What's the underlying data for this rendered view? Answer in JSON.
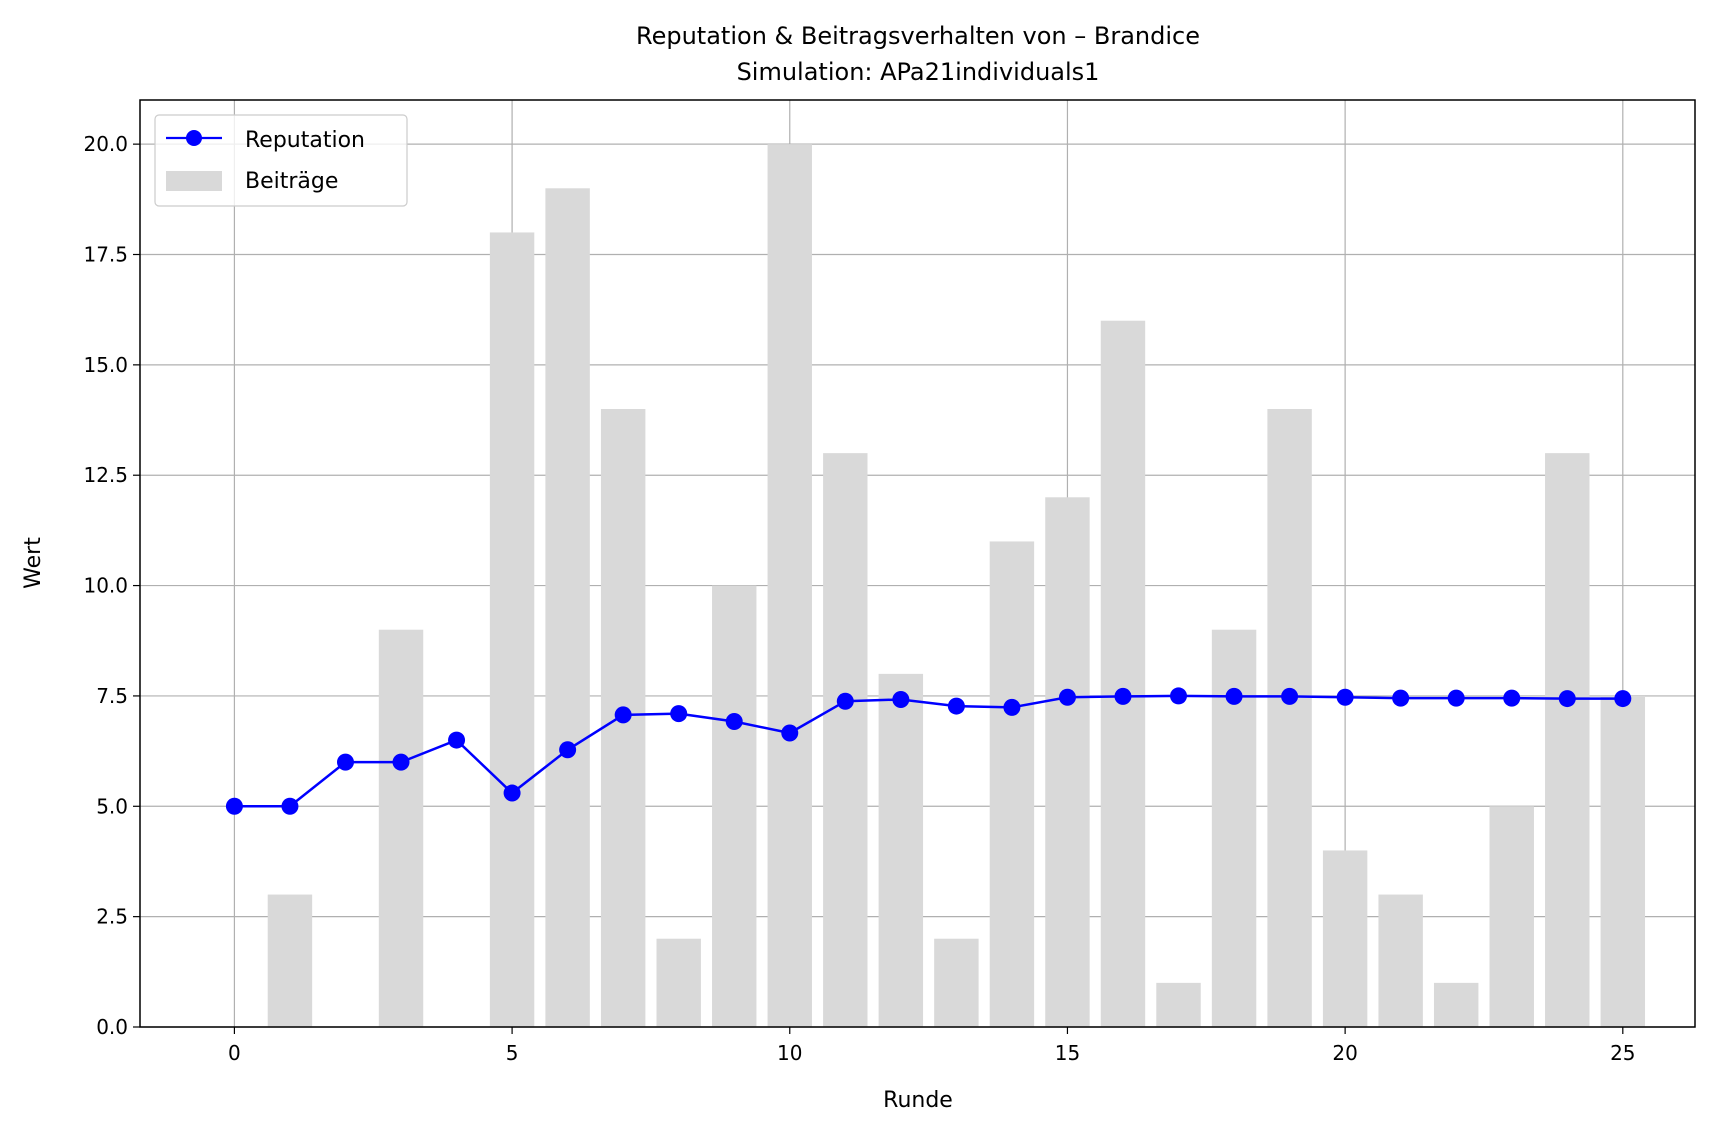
{
  "chart_data": {
    "type": "bar+line",
    "title": "Reputation & Beitragsverhalten von – Brandice",
    "subtitle": "Simulation: APa21individuals1",
    "xlabel": "Runde",
    "ylabel": "Wert",
    "xlim": [
      -1.7,
      26.3
    ],
    "ylim": [
      0,
      21
    ],
    "x_ticks": [
      0,
      5,
      10,
      15,
      20,
      25
    ],
    "x_tick_labels": [
      "0",
      "5",
      "10",
      "15",
      "20",
      "25"
    ],
    "y_ticks": [
      0,
      2.5,
      5,
      7.5,
      10,
      12.5,
      15,
      17.5,
      20
    ],
    "y_tick_labels": [
      "0.0",
      "2.5",
      "5.0",
      "7.5",
      "10.0",
      "12.5",
      "15.0",
      "17.5",
      "20.0"
    ],
    "grid": true,
    "legend_position": "upper-left",
    "x": [
      0,
      1,
      2,
      3,
      4,
      5,
      6,
      7,
      8,
      9,
      10,
      11,
      12,
      13,
      14,
      15,
      16,
      17,
      18,
      19,
      20,
      21,
      22,
      23,
      24,
      25
    ],
    "series": [
      {
        "name": "Reputation",
        "kind": "line",
        "marker": "circle",
        "color": "#0000ff",
        "values": [
          5.0,
          5.0,
          6.0,
          6.0,
          6.5,
          5.3,
          6.28,
          7.07,
          7.1,
          6.92,
          6.66,
          7.38,
          7.42,
          7.27,
          7.24,
          7.47,
          7.49,
          7.5,
          7.49,
          7.49,
          7.47,
          7.45,
          7.45,
          7.45,
          7.44,
          7.44
        ]
      },
      {
        "name": "Beiträge",
        "kind": "bar",
        "color": "#d9d9d9",
        "values": [
          0,
          3,
          0,
          9,
          0,
          18,
          19,
          14,
          2,
          10,
          20,
          13,
          8,
          2,
          11,
          12,
          16,
          1,
          9,
          14,
          4,
          3,
          1,
          5,
          13,
          7.5
        ]
      }
    ]
  }
}
